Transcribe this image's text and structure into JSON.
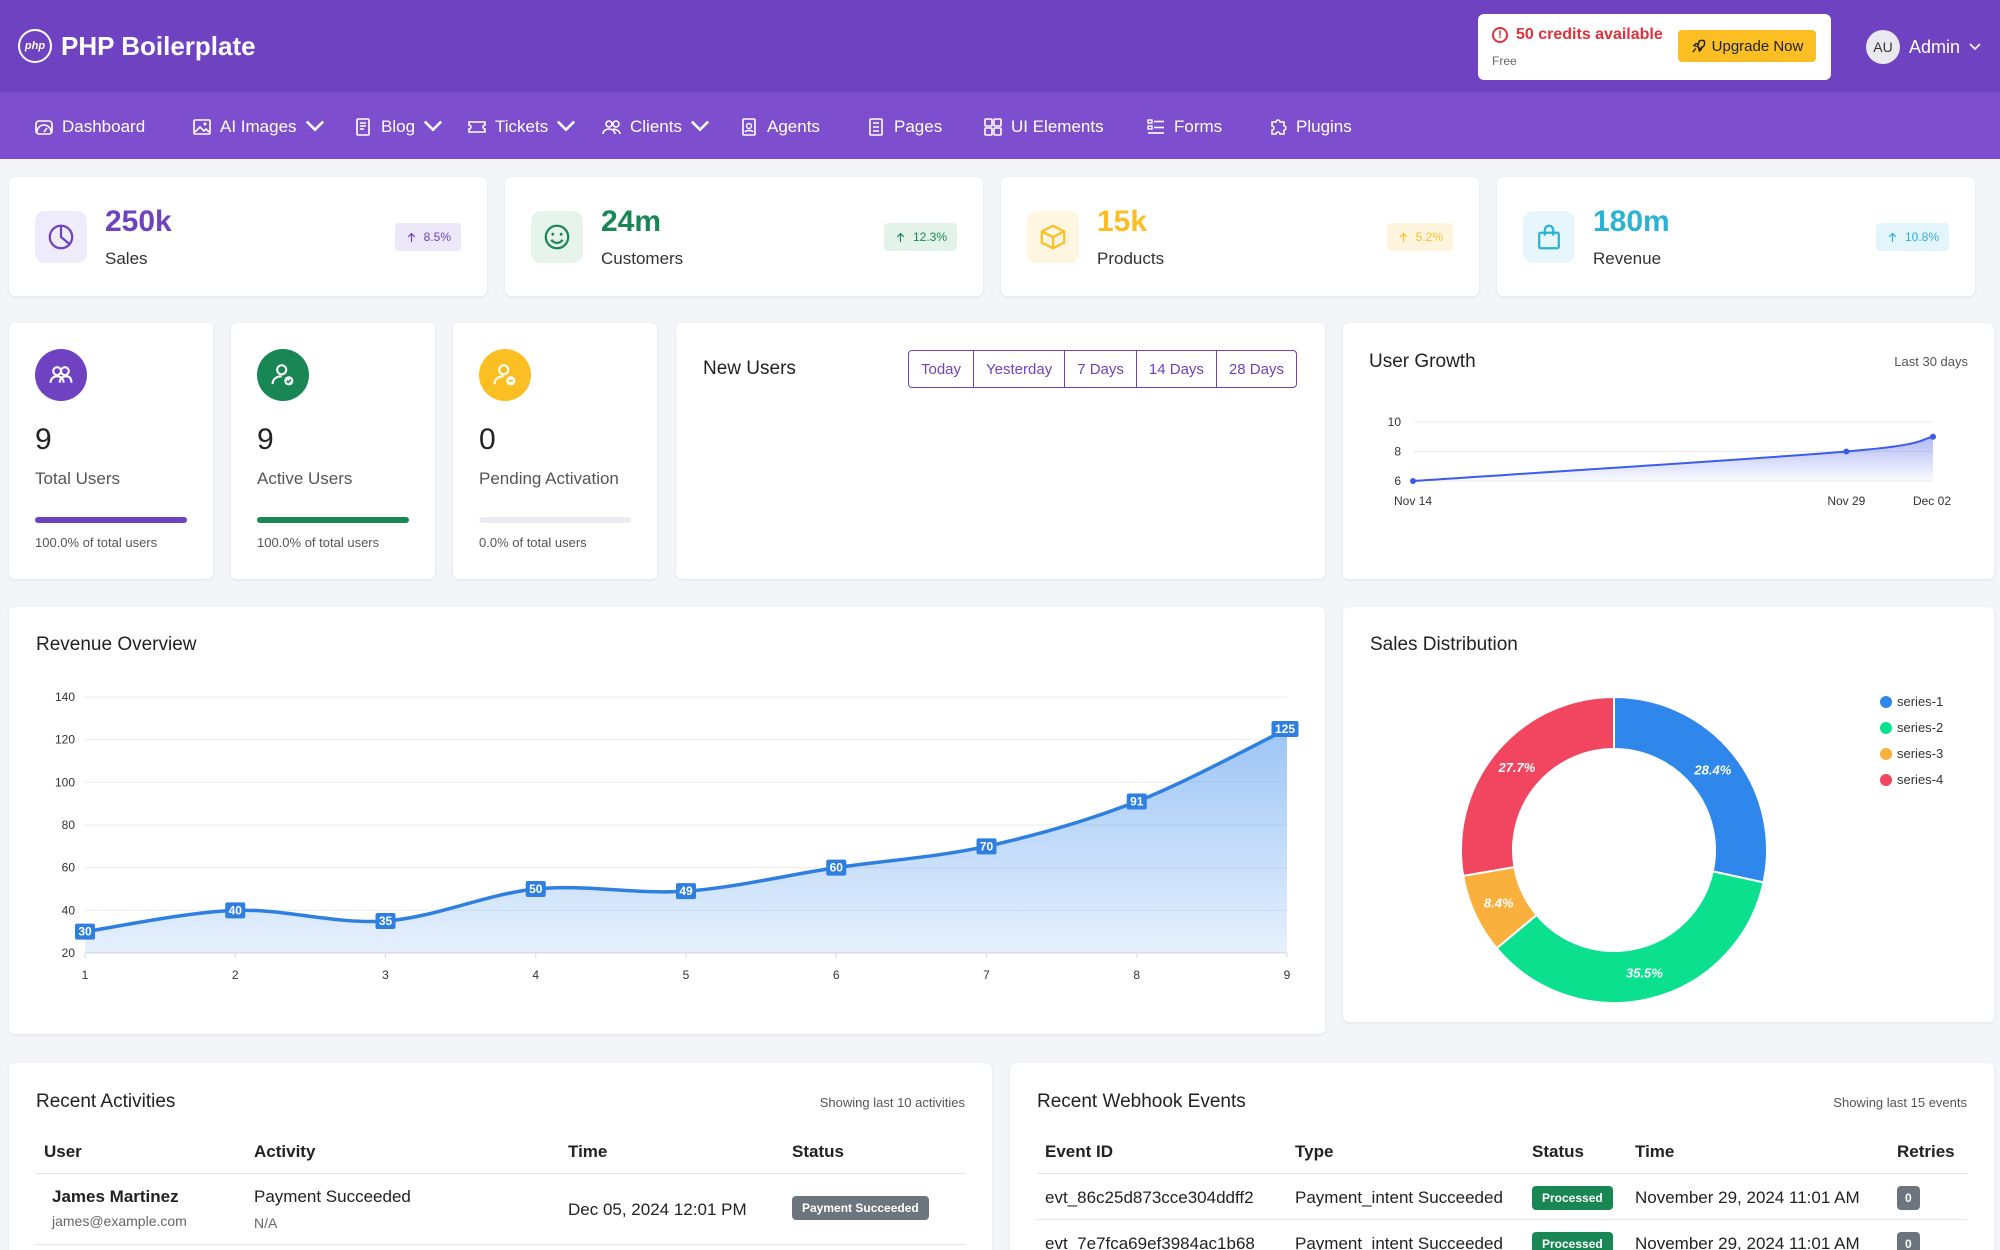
{
  "app": {
    "brand": "PHP Boilerplate",
    "logo_text": "php"
  },
  "header": {
    "credits_text": "50 credits available",
    "plan": "Free",
    "upgrade_label": "Upgrade Now",
    "avatar_initials": "AU",
    "user_name": "Admin"
  },
  "nav": [
    {
      "label": "Dashboard",
      "icon": "dashboard-icon",
      "dropdown": false
    },
    {
      "label": "AI Images",
      "icon": "image-icon",
      "dropdown": true
    },
    {
      "label": "Blog",
      "icon": "document-icon",
      "dropdown": true
    },
    {
      "label": "Tickets",
      "icon": "ticket-icon",
      "dropdown": true
    },
    {
      "label": "Clients",
      "icon": "people-icon",
      "dropdown": true
    },
    {
      "label": "Agents",
      "icon": "badge-icon",
      "dropdown": false
    },
    {
      "label": "Pages",
      "icon": "page-icon",
      "dropdown": false
    },
    {
      "label": "UI Elements",
      "icon": "grid-icon",
      "dropdown": false
    },
    {
      "label": "Forms",
      "icon": "form-icon",
      "dropdown": false
    },
    {
      "label": "Plugins",
      "icon": "puzzle-icon",
      "dropdown": false
    }
  ],
  "stats": [
    {
      "value": "250k",
      "label": "Sales",
      "change": "8.5%",
      "icon": "pie-chart-icon",
      "color": "#6f42c1",
      "bg": "#eeebfa",
      "badge_bg": "#ece8f8"
    },
    {
      "value": "24m",
      "label": "Customers",
      "change": "12.3%",
      "icon": "smiley-icon",
      "color": "#198754",
      "bg": "#e6f4ec",
      "badge_bg": "#e3f3ea"
    },
    {
      "value": "15k",
      "label": "Products",
      "change": "5.2%",
      "icon": "box-icon",
      "color": "#fbbf24",
      "bg": "#fff6e2",
      "badge_bg": "#fff5df"
    },
    {
      "value": "180m",
      "label": "Revenue",
      "change": "10.8%",
      "icon": "shopping-bag-icon",
      "color": "#2bb3d6",
      "bg": "#e6f6fb",
      "badge_bg": "#e3f5fa"
    }
  ],
  "user_cards": [
    {
      "value": "9",
      "label": "Total Users",
      "pct": "100.0% of total users",
      "fill": 1.0,
      "color": "#6f42c1",
      "icon": "users-icon"
    },
    {
      "value": "9",
      "label": "Active Users",
      "pct": "100.0% of total users",
      "fill": 1.0,
      "color": "#198754",
      "icon": "user-check-icon"
    },
    {
      "value": "0",
      "label": "Pending Activation",
      "pct": "0.0% of total users",
      "fill": 0.0,
      "color": "#fbbf24",
      "icon": "user-clock-icon"
    }
  ],
  "new_users": {
    "title": "New Users",
    "ranges": [
      "Today",
      "Yesterday",
      "7 Days",
      "14 Days",
      "28 Days"
    ]
  },
  "user_growth": {
    "title": "User Growth",
    "subtitle": "Last 30 days"
  },
  "revenue": {
    "title": "Revenue Overview"
  },
  "sales_dist": {
    "title": "Sales Distribution"
  },
  "activities": {
    "title": "Recent Activities",
    "subtitle": "Showing last 10 activities",
    "headers": [
      "User",
      "Activity",
      "Time",
      "Status"
    ],
    "rows": [
      {
        "user": "James Martinez",
        "email": "james@example.com",
        "activity": "Payment Succeeded",
        "detail": "N/A",
        "time": "Dec 05, 2024 12:01 PM",
        "status": "Payment Succeeded"
      }
    ]
  },
  "webhooks": {
    "title": "Recent Webhook Events",
    "subtitle": "Showing last 15 events",
    "headers": [
      "Event ID",
      "Type",
      "Status",
      "Time",
      "Retries"
    ],
    "rows": [
      {
        "id": "evt_86c25d873cce304ddff2",
        "type": "Payment_intent Succeeded",
        "status": "Processed",
        "time": "November 29, 2024 11:01 AM",
        "retries": "0"
      },
      {
        "id": "evt_7e7fca69ef3984ac1b68",
        "type": "Payment_intent Succeeded",
        "status": "Processed",
        "time": "November 29, 2024 11:01 AM",
        "retries": "0"
      }
    ]
  },
  "chart_data": [
    {
      "type": "area",
      "title": "User Growth",
      "categories": [
        "Nov 14",
        "Nov 29",
        "Dec 02"
      ],
      "values": [
        6,
        8,
        9
      ],
      "ylim": [
        6,
        10
      ],
      "yticks": [
        "10",
        "8",
        "6"
      ]
    },
    {
      "type": "area",
      "title": "Revenue Overview",
      "x": [
        "1",
        "2",
        "3",
        "4",
        "5",
        "6",
        "7",
        "8",
        "9"
      ],
      "values": [
        30,
        40,
        35,
        50,
        49,
        60,
        70,
        91,
        125
      ],
      "ylim": [
        20,
        140
      ],
      "yticks": [
        "140",
        "120",
        "100",
        "80",
        "60",
        "40",
        "20"
      ],
      "data_labels": [
        "30",
        "40",
        "35",
        "50",
        "49",
        "60",
        "70",
        "91",
        "125"
      ],
      "color": "#2f7fe0"
    },
    {
      "type": "pie",
      "title": "Sales Distribution",
      "series": [
        {
          "name": "series-1",
          "value": 28.4,
          "label": "28.4%",
          "color": "#2f86eb"
        },
        {
          "name": "series-2",
          "value": 35.5,
          "label": "35.5%",
          "color": "#0be08f"
        },
        {
          "name": "series-3",
          "value": 8.4,
          "label": "8.4%",
          "color": "#f9b03c"
        },
        {
          "name": "series-4",
          "value": 27.7,
          "label": "27.7%",
          "color": "#f24660"
        }
      ],
      "legend": "right"
    }
  ]
}
